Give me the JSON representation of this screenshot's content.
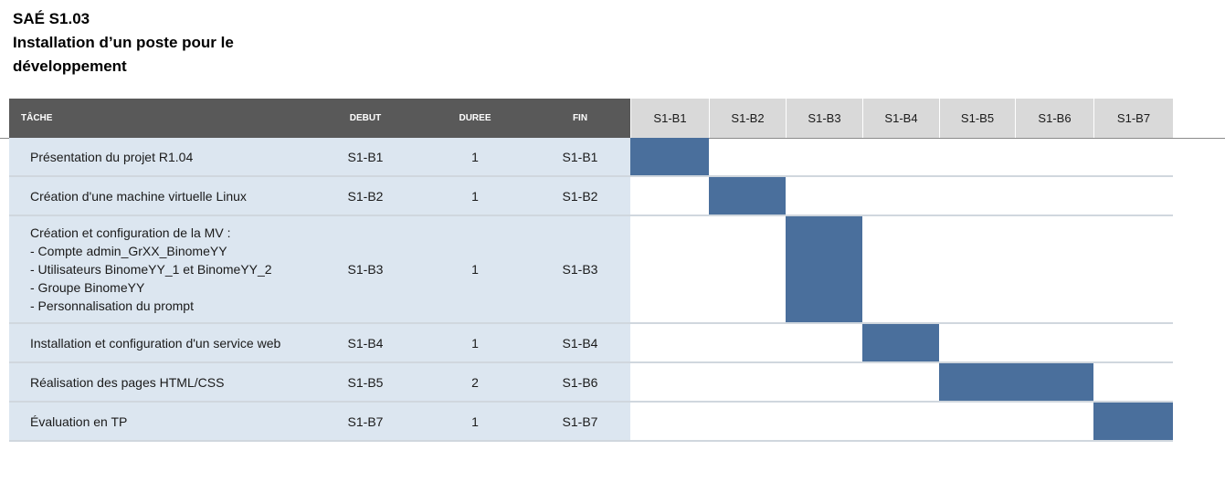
{
  "title": {
    "lines": [
      "SAÉ S1.03",
      "Installation d’un poste pour le",
      "développement"
    ]
  },
  "header": {
    "task": "TÂCHE",
    "start": "DEBUT",
    "duration": "DUREE",
    "end": "FIN",
    "weeks": [
      "S1-B1",
      "S1-B2",
      "S1-B3",
      "S1-B4",
      "S1-B5",
      "S1-B6",
      "S1-B7"
    ]
  },
  "tasks": [
    {
      "lines": [
        "Présentation du projet R1.04"
      ],
      "start": "S1-B1",
      "duration": "1",
      "end": "S1-B1",
      "start_index": 0,
      "span": 1
    },
    {
      "lines": [
        "Création d'une machine virtuelle Linux"
      ],
      "start": "S1-B2",
      "duration": "1",
      "end": "S1-B2",
      "start_index": 1,
      "span": 1
    },
    {
      "lines": [
        "Création et configuration de la MV :",
        "- Compte admin_GrXX_BinomeYY",
        "- Utilisateurs BinomeYY_1 et BinomeYY_2",
        "- Groupe BinomeYY",
        "- Personnalisation du prompt"
      ],
      "start": "S1-B3",
      "duration": "1",
      "end": "S1-B3",
      "start_index": 2,
      "span": 1
    },
    {
      "lines": [
        "Installation et configuration d'un service web"
      ],
      "start": "S1-B4",
      "duration": "1",
      "end": "S1-B4",
      "start_index": 3,
      "span": 1
    },
    {
      "lines": [
        "Réalisation des pages HTML/CSS"
      ],
      "start": "S1-B5",
      "duration": "2",
      "end": "S1-B6",
      "start_index": 4,
      "span": 2
    },
    {
      "lines": [
        "Évaluation en TP"
      ],
      "start": "S1-B7",
      "duration": "1",
      "end": "S1-B7",
      "start_index": 6,
      "span": 1
    }
  ],
  "colors": {
    "header_dark": "#595959",
    "header_week": "#d9d9d9",
    "task_background": "#dce6f0",
    "bar": "#4a6f9c"
  }
}
